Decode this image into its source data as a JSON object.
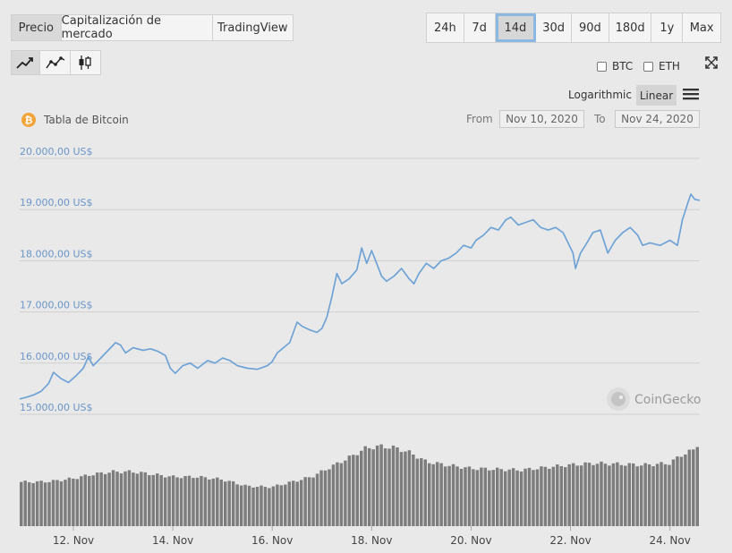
{
  "tabs": [
    {
      "label": "Precio",
      "active": true
    },
    {
      "label": "Capitalización de mercado",
      "active": false
    },
    {
      "label": "TradingView",
      "active": false
    }
  ],
  "ranges": [
    {
      "label": "24h",
      "active": false
    },
    {
      "label": "7d",
      "active": false
    },
    {
      "label": "14d",
      "active": true
    },
    {
      "label": "30d",
      "active": false
    },
    {
      "label": "90d",
      "active": false
    },
    {
      "label": "180d",
      "active": false
    },
    {
      "label": "1y",
      "active": false
    },
    {
      "label": "Max",
      "active": false
    }
  ],
  "chart_modes": [
    {
      "icon": "line-chart-icon",
      "active": true
    },
    {
      "icon": "smooth-line-chart-icon",
      "active": false
    },
    {
      "icon": "candlestick-icon",
      "active": false
    }
  ],
  "compare": [
    {
      "label": "BTC",
      "checked": false
    },
    {
      "label": "ETH",
      "checked": false
    }
  ],
  "scale": {
    "logarithmic": "Logarithmic",
    "linear": "Linear",
    "active": "linear"
  },
  "date_range": {
    "from_label": "From",
    "from_value": "Nov 10, 2020",
    "to_label": "To",
    "to_value": "Nov 24, 2020"
  },
  "watermark": "CoinGecko",
  "colors": {
    "line": "#6fa3d6",
    "volume": "#7d7d7d",
    "bitcoin": "#f2a33a",
    "grid": "#cfcfcf"
  },
  "chart_data": {
    "type": "line",
    "title": "Tabla de Bitcoin",
    "y_axis": {
      "min": 15000,
      "max": 20000,
      "ticks": [
        20000,
        19000,
        18000,
        17000,
        16000,
        15000
      ],
      "tick_labels": [
        "20.000,00 US$",
        "19.000,00 US$",
        "18.000,00 US$",
        "17.000,00 US$",
        "16.000,00 US$",
        "15.000,00 US$"
      ]
    },
    "x_axis": {
      "start_day": 10.92,
      "end_day": 24.6,
      "ticks": [
        12,
        14,
        16,
        18,
        20,
        22,
        24
      ],
      "tick_labels": [
        "12. Nov",
        "14. Nov",
        "16. Nov",
        "18. Nov",
        "20. Nov",
        "22. Nov",
        "24. Nov"
      ]
    },
    "price_series": [
      [
        10.92,
        15300
      ],
      [
        11.05,
        15330
      ],
      [
        11.2,
        15380
      ],
      [
        11.35,
        15450
      ],
      [
        11.5,
        15600
      ],
      [
        11.6,
        15820
      ],
      [
        11.75,
        15700
      ],
      [
        11.9,
        15620
      ],
      [
        12.05,
        15750
      ],
      [
        12.2,
        15900
      ],
      [
        12.3,
        16120
      ],
      [
        12.4,
        15950
      ],
      [
        12.55,
        16100
      ],
      [
        12.7,
        16250
      ],
      [
        12.85,
        16400
      ],
      [
        12.95,
        16350
      ],
      [
        13.05,
        16200
      ],
      [
        13.2,
        16300
      ],
      [
        13.4,
        16250
      ],
      [
        13.55,
        16280
      ],
      [
        13.7,
        16230
      ],
      [
        13.85,
        16150
      ],
      [
        13.95,
        15900
      ],
      [
        14.05,
        15800
      ],
      [
        14.2,
        15950
      ],
      [
        14.35,
        16000
      ],
      [
        14.5,
        15900
      ],
      [
        14.7,
        16050
      ],
      [
        14.85,
        16000
      ],
      [
        15.0,
        16100
      ],
      [
        15.15,
        16050
      ],
      [
        15.3,
        15950
      ],
      [
        15.5,
        15900
      ],
      [
        15.7,
        15880
      ],
      [
        15.9,
        15950
      ],
      [
        16.0,
        16030
      ],
      [
        16.1,
        16200
      ],
      [
        16.2,
        16280
      ],
      [
        16.35,
        16400
      ],
      [
        16.5,
        16800
      ],
      [
        16.6,
        16720
      ],
      [
        16.75,
        16650
      ],
      [
        16.9,
        16600
      ],
      [
        17.0,
        16680
      ],
      [
        17.1,
        16900
      ],
      [
        17.2,
        17300
      ],
      [
        17.3,
        17750
      ],
      [
        17.4,
        17550
      ],
      [
        17.55,
        17650
      ],
      [
        17.7,
        17820
      ],
      [
        17.8,
        18250
      ],
      [
        17.9,
        17950
      ],
      [
        18.0,
        18200
      ],
      [
        18.1,
        17950
      ],
      [
        18.2,
        17700
      ],
      [
        18.3,
        17600
      ],
      [
        18.45,
        17700
      ],
      [
        18.6,
        17850
      ],
      [
        18.75,
        17650
      ],
      [
        18.85,
        17550
      ],
      [
        18.95,
        17750
      ],
      [
        19.1,
        17950
      ],
      [
        19.25,
        17850
      ],
      [
        19.4,
        18000
      ],
      [
        19.55,
        18050
      ],
      [
        19.7,
        18150
      ],
      [
        19.85,
        18300
      ],
      [
        20.0,
        18250
      ],
      [
        20.1,
        18400
      ],
      [
        20.25,
        18500
      ],
      [
        20.4,
        18650
      ],
      [
        20.55,
        18600
      ],
      [
        20.7,
        18800
      ],
      [
        20.8,
        18850
      ],
      [
        20.95,
        18700
      ],
      [
        21.1,
        18750
      ],
      [
        21.25,
        18800
      ],
      [
        21.4,
        18650
      ],
      [
        21.55,
        18600
      ],
      [
        21.7,
        18650
      ],
      [
        21.85,
        18550
      ],
      [
        21.95,
        18350
      ],
      [
        22.05,
        18150
      ],
      [
        22.1,
        17850
      ],
      [
        22.2,
        18150
      ],
      [
        22.3,
        18300
      ],
      [
        22.45,
        18550
      ],
      [
        22.6,
        18600
      ],
      [
        22.75,
        18150
      ],
      [
        22.9,
        18400
      ],
      [
        23.05,
        18550
      ],
      [
        23.2,
        18650
      ],
      [
        23.35,
        18500
      ],
      [
        23.45,
        18300
      ],
      [
        23.6,
        18350
      ],
      [
        23.8,
        18300
      ],
      [
        24.0,
        18400
      ],
      [
        24.15,
        18300
      ],
      [
        24.25,
        18800
      ],
      [
        24.35,
        19100
      ],
      [
        24.42,
        19300
      ],
      [
        24.5,
        19200
      ],
      [
        24.6,
        19180
      ]
    ],
    "volume_series": [
      [
        10.92,
        0.52
      ],
      [
        11.3,
        0.52
      ],
      [
        11.6,
        0.53
      ],
      [
        12.0,
        0.56
      ],
      [
        12.4,
        0.61
      ],
      [
        12.8,
        0.64
      ],
      [
        13.2,
        0.64
      ],
      [
        13.6,
        0.61
      ],
      [
        14.0,
        0.58
      ],
      [
        14.5,
        0.58
      ],
      [
        15.0,
        0.55
      ],
      [
        15.5,
        0.47
      ],
      [
        16.0,
        0.46
      ],
      [
        16.4,
        0.52
      ],
      [
        16.8,
        0.58
      ],
      [
        17.2,
        0.7
      ],
      [
        17.6,
        0.82
      ],
      [
        17.9,
        0.92
      ],
      [
        18.2,
        0.94
      ],
      [
        18.5,
        0.92
      ],
      [
        18.8,
        0.86
      ],
      [
        19.1,
        0.76
      ],
      [
        19.5,
        0.72
      ],
      [
        20.0,
        0.68
      ],
      [
        20.5,
        0.67
      ],
      [
        21.0,
        0.66
      ],
      [
        21.5,
        0.69
      ],
      [
        22.0,
        0.72
      ],
      [
        22.5,
        0.74
      ],
      [
        23.0,
        0.73
      ],
      [
        23.5,
        0.72
      ],
      [
        24.0,
        0.74
      ],
      [
        24.25,
        0.84
      ],
      [
        24.5,
        0.9
      ],
      [
        24.6,
        1.0
      ]
    ]
  }
}
